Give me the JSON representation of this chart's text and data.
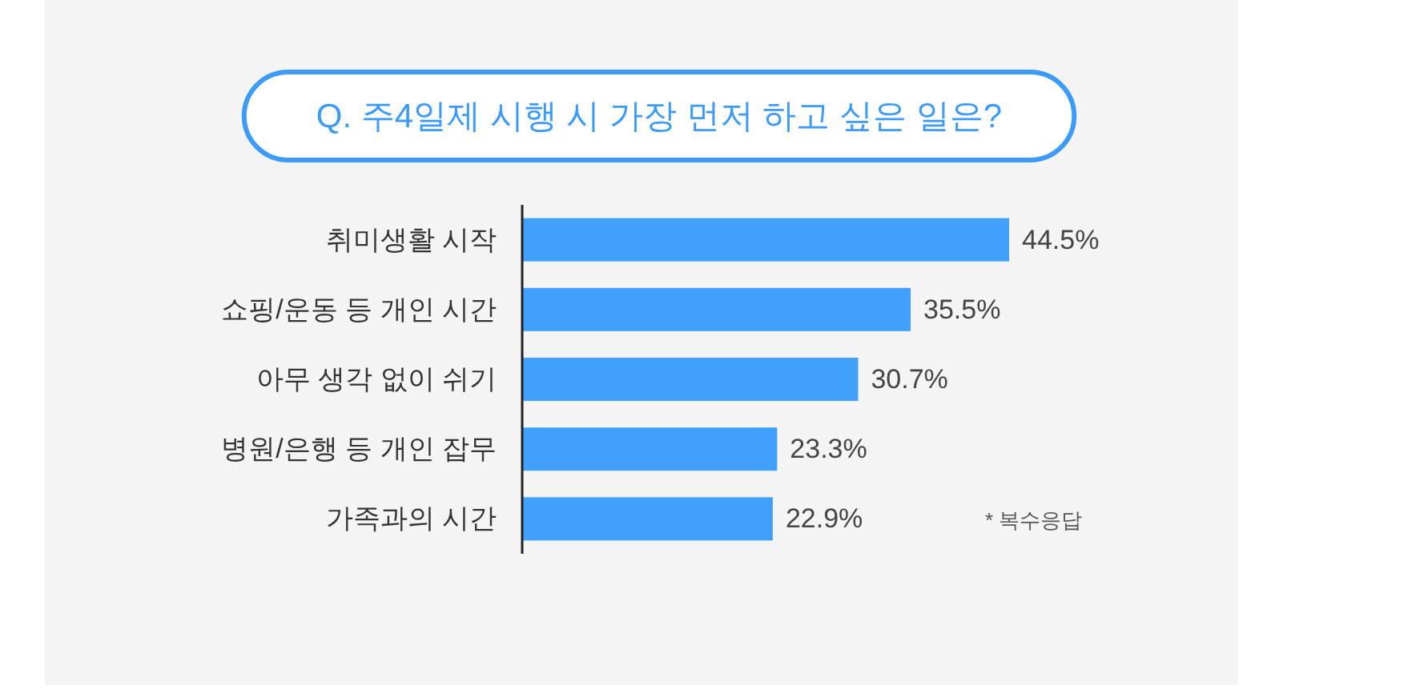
{
  "chart_data": {
    "type": "bar",
    "orientation": "horizontal",
    "title": "Q. 주4일제 시행 시 가장 먼저 하고 싶은 일은?",
    "categories": [
      "취미생활 시작",
      "쇼핑/운동 등 개인 시간",
      "아무 생각 없이 쉬기",
      "병원/은행 등 개인 잡무",
      "가족과의 시간"
    ],
    "values": [
      44.5,
      35.5,
      30.7,
      23.3,
      22.9
    ],
    "color": "#40a0fc",
    "value_labels": [
      "44.5%",
      "35.5%",
      "30.7%",
      "23.3%",
      "22.9%"
    ],
    "annotations": [
      "* 복수응답"
    ]
  }
}
